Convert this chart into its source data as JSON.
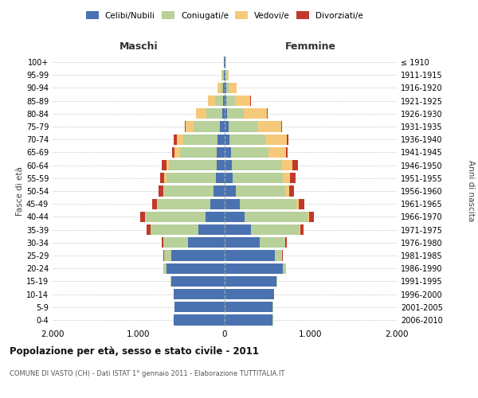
{
  "age_groups": [
    "0-4",
    "5-9",
    "10-14",
    "15-19",
    "20-24",
    "25-29",
    "30-34",
    "35-39",
    "40-44",
    "45-49",
    "50-54",
    "55-59",
    "60-64",
    "65-69",
    "70-74",
    "75-79",
    "80-84",
    "85-89",
    "90-94",
    "95-99",
    "100+"
  ],
  "birth_years": [
    "2006-2010",
    "2001-2005",
    "1996-2000",
    "1991-1995",
    "1986-1990",
    "1981-1985",
    "1976-1980",
    "1971-1975",
    "1966-1970",
    "1961-1965",
    "1956-1960",
    "1951-1955",
    "1946-1950",
    "1941-1945",
    "1936-1940",
    "1931-1935",
    "1926-1930",
    "1921-1925",
    "1916-1920",
    "1911-1915",
    "≤ 1910"
  ],
  "colors": {
    "celibi": "#4a72b0",
    "coniugati": "#b8d09a",
    "vedovi": "#f5c97a",
    "divorziati": "#c0392b"
  },
  "males": {
    "celibi": [
      590,
      580,
      590,
      620,
      680,
      620,
      430,
      310,
      220,
      170,
      130,
      100,
      90,
      90,
      80,
      60,
      30,
      20,
      15,
      10,
      5
    ],
    "coniugati": [
      5,
      5,
      5,
      10,
      30,
      80,
      280,
      550,
      700,
      610,
      570,
      580,
      560,
      430,
      400,
      300,
      180,
      90,
      30,
      15,
      5
    ],
    "vedovi": [
      0,
      0,
      1,
      1,
      2,
      2,
      3,
      5,
      8,
      10,
      15,
      20,
      30,
      60,
      80,
      90,
      120,
      80,
      40,
      10,
      3
    ],
    "divorziati": [
      0,
      0,
      1,
      2,
      5,
      10,
      20,
      40,
      50,
      50,
      50,
      50,
      50,
      30,
      30,
      10,
      5,
      5,
      0,
      0,
      0
    ]
  },
  "females": {
    "nubili": [
      560,
      560,
      570,
      600,
      680,
      580,
      410,
      310,
      230,
      180,
      130,
      90,
      80,
      70,
      55,
      45,
      25,
      20,
      15,
      10,
      5
    ],
    "coniugate": [
      5,
      5,
      5,
      10,
      30,
      80,
      290,
      560,
      730,
      650,
      570,
      590,
      580,
      440,
      420,
      330,
      200,
      100,
      40,
      15,
      5
    ],
    "vedove": [
      0,
      0,
      1,
      1,
      2,
      3,
      5,
      10,
      20,
      30,
      50,
      80,
      130,
      200,
      250,
      280,
      270,
      180,
      80,
      20,
      5
    ],
    "divorziate": [
      0,
      0,
      1,
      2,
      5,
      10,
      20,
      40,
      60,
      70,
      60,
      60,
      60,
      20,
      15,
      10,
      5,
      5,
      0,
      0,
      0
    ]
  },
  "xlim": 2000,
  "title": "Popolazione per età, sesso e stato civile - 2011",
  "subtitle": "COMUNE DI VASTO (CH) - Dati ISTAT 1° gennaio 2011 - Elaborazione TUTTITALIA.IT",
  "xlabel_left": "Maschi",
  "xlabel_right": "Femmine",
  "ylabel_left": "Fasce di età",
  "ylabel_right": "Anni di nascita",
  "xticks": [
    -2000,
    -1000,
    0,
    1000,
    2000
  ],
  "xtick_labels": [
    "2.000",
    "1.000",
    "0",
    "1.000",
    "2.000"
  ]
}
